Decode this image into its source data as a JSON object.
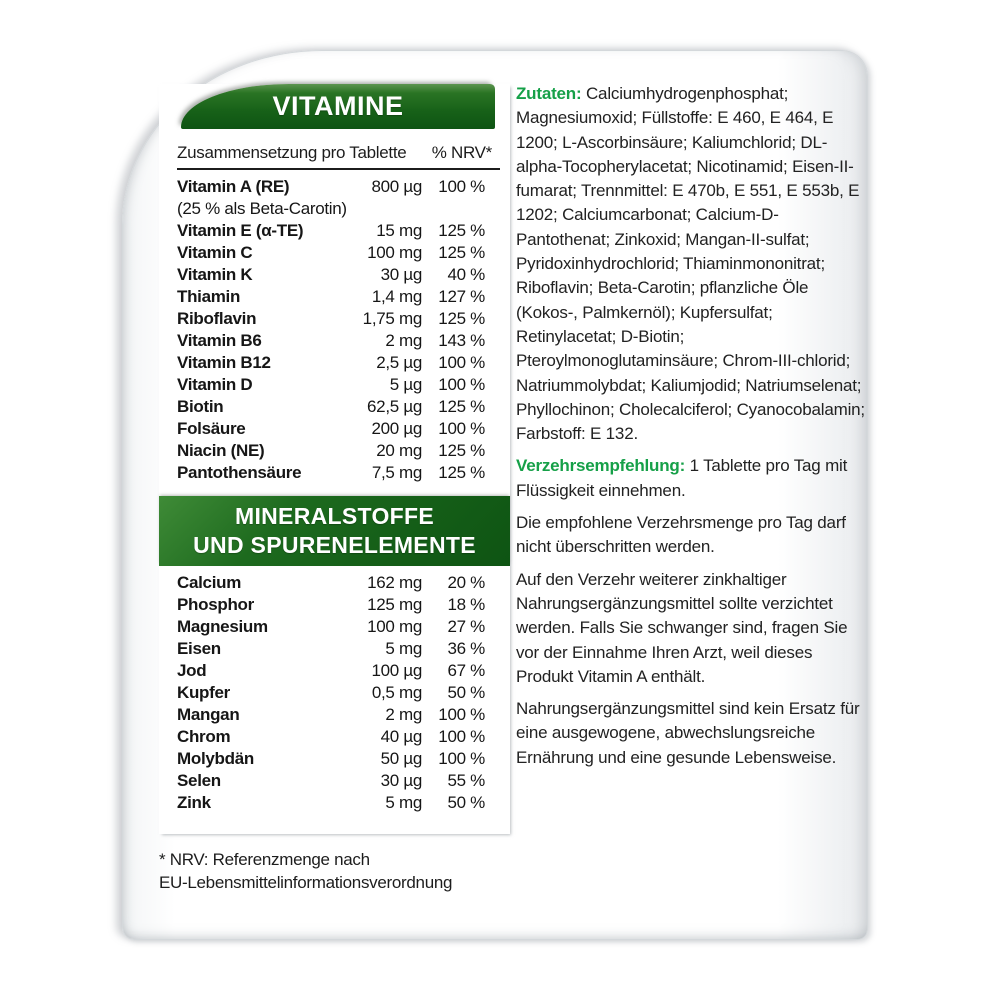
{
  "colors": {
    "header_green": "#176118",
    "accent_green": "#16a048",
    "text_black": "#161616",
    "card_background": "#ffffff"
  },
  "vitamins": {
    "header": "VITAMINE",
    "columns": {
      "left": "Zusammensetzung pro Tablette",
      "right": "% NRV*"
    },
    "rows": [
      {
        "name": "Vitamin A (RE)",
        "amount": "800 µg",
        "nrv": "100 %",
        "note": "(25 % als Beta-Carotin)"
      },
      {
        "name": "Vitamin E (α-TE)",
        "amount": "15 mg",
        "nrv": "125 %"
      },
      {
        "name": "Vitamin C",
        "amount": "100 mg",
        "nrv": "125 %"
      },
      {
        "name": "Vitamin K",
        "amount": "30 µg",
        "nrv": "40 %"
      },
      {
        "name": "Thiamin",
        "amount": "1,4 mg",
        "nrv": "127 %"
      },
      {
        "name": "Riboflavin",
        "amount": "1,75 mg",
        "nrv": "125 %"
      },
      {
        "name": "Vitamin B6",
        "amount": "2 mg",
        "nrv": "143 %"
      },
      {
        "name": "Vitamin B12",
        "amount": "2,5 µg",
        "nrv": "100 %"
      },
      {
        "name": "Vitamin D",
        "amount": "5 µg",
        "nrv": "100 %"
      },
      {
        "name": "Biotin",
        "amount": "62,5 µg",
        "nrv": "125 %"
      },
      {
        "name": "Folsäure",
        "amount": "200 µg",
        "nrv": "100 %"
      },
      {
        "name": "Niacin (NE)",
        "amount": "20 mg",
        "nrv": "125 %"
      },
      {
        "name": "Pantothensäure",
        "amount": "7,5 mg",
        "nrv": "125 %"
      }
    ]
  },
  "minerals": {
    "header_line1": "MINERALSTOFFE",
    "header_line2": "UND SPURENELEMENTE",
    "rows": [
      {
        "name": "Calcium",
        "amount": "162 mg",
        "nrv": "20 %"
      },
      {
        "name": "Phosphor",
        "amount": "125 mg",
        "nrv": "18 %"
      },
      {
        "name": "Magnesium",
        "amount": "100 mg",
        "nrv": "27 %"
      },
      {
        "name": "Eisen",
        "amount": "5 mg",
        "nrv": "36 %"
      },
      {
        "name": "Jod",
        "amount": "100 µg",
        "nrv": "67 %"
      },
      {
        "name": "Kupfer",
        "amount": "0,5 mg",
        "nrv": "50 %"
      },
      {
        "name": "Mangan",
        "amount": "2 mg",
        "nrv": "100 %"
      },
      {
        "name": "Chrom",
        "amount": "40 µg",
        "nrv": "100 %"
      },
      {
        "name": "Molybdän",
        "amount": "50 µg",
        "nrv": "100 %"
      },
      {
        "name": "Selen",
        "amount": "30 µg",
        "nrv": "55 %"
      },
      {
        "name": "Zink",
        "amount": "5 mg",
        "nrv": "50 %"
      }
    ]
  },
  "footnote": {
    "line1": "* NRV: Referenzmenge nach",
    "line2": "EU-Lebensmittelinformationsverordnung"
  },
  "ingredients": {
    "label": "Zutaten:",
    "text": "Calciumhydrogenphosphat; Magnesiumoxid; Füllstoffe: E 460, E 464, E 1200; L-Ascorbinsäure; Kaliumchlorid; DL-alpha-Tocopherylacetat; Nicotinamid; Eisen-II-fumarat; Trennmittel: E 470b, E 551, E 553b, E 1202; Calciumcarbonat; Calcium-D-Pantothenat; Zinkoxid; Mangan-II-sulfat; Pyridoxinhydrochlorid; Thiaminmononitrat; Riboflavin; Beta-Carotin; pflanzliche Öle (Kokos-, Palmkernöl); Kupfersulfat; Retinylacetat; D-Biotin; Pteroylmonoglutaminsäure; Chrom-III-chlorid; Natriummolybdat; Kaliumjodid; Natriumselenat; Phyllochinon; Cholecalciferol; Cyanocobalamin; Farbstoff: E 132."
  },
  "dosage": {
    "label": "Verzehrsempfehlung:",
    "text": "1 Tablette pro Tag mit Flüssigkeit einnehmen."
  },
  "advisories": [
    "Die empfohlene Verzehrsmenge pro Tag darf nicht überschritten werden.",
    "Auf den Verzehr weiterer zinkhaltiger Nahrungsergänzungsmittel sollte verzichtet werden. Falls Sie schwanger sind, fragen Sie vor der Einnahme Ihren Arzt, weil dieses Produkt Vitamin A enthält.",
    "Nahrungsergänzungsmittel sind kein Ersatz für eine ausgewogene, abwechslungsreiche Ernährung und eine gesunde Lebensweise."
  ]
}
